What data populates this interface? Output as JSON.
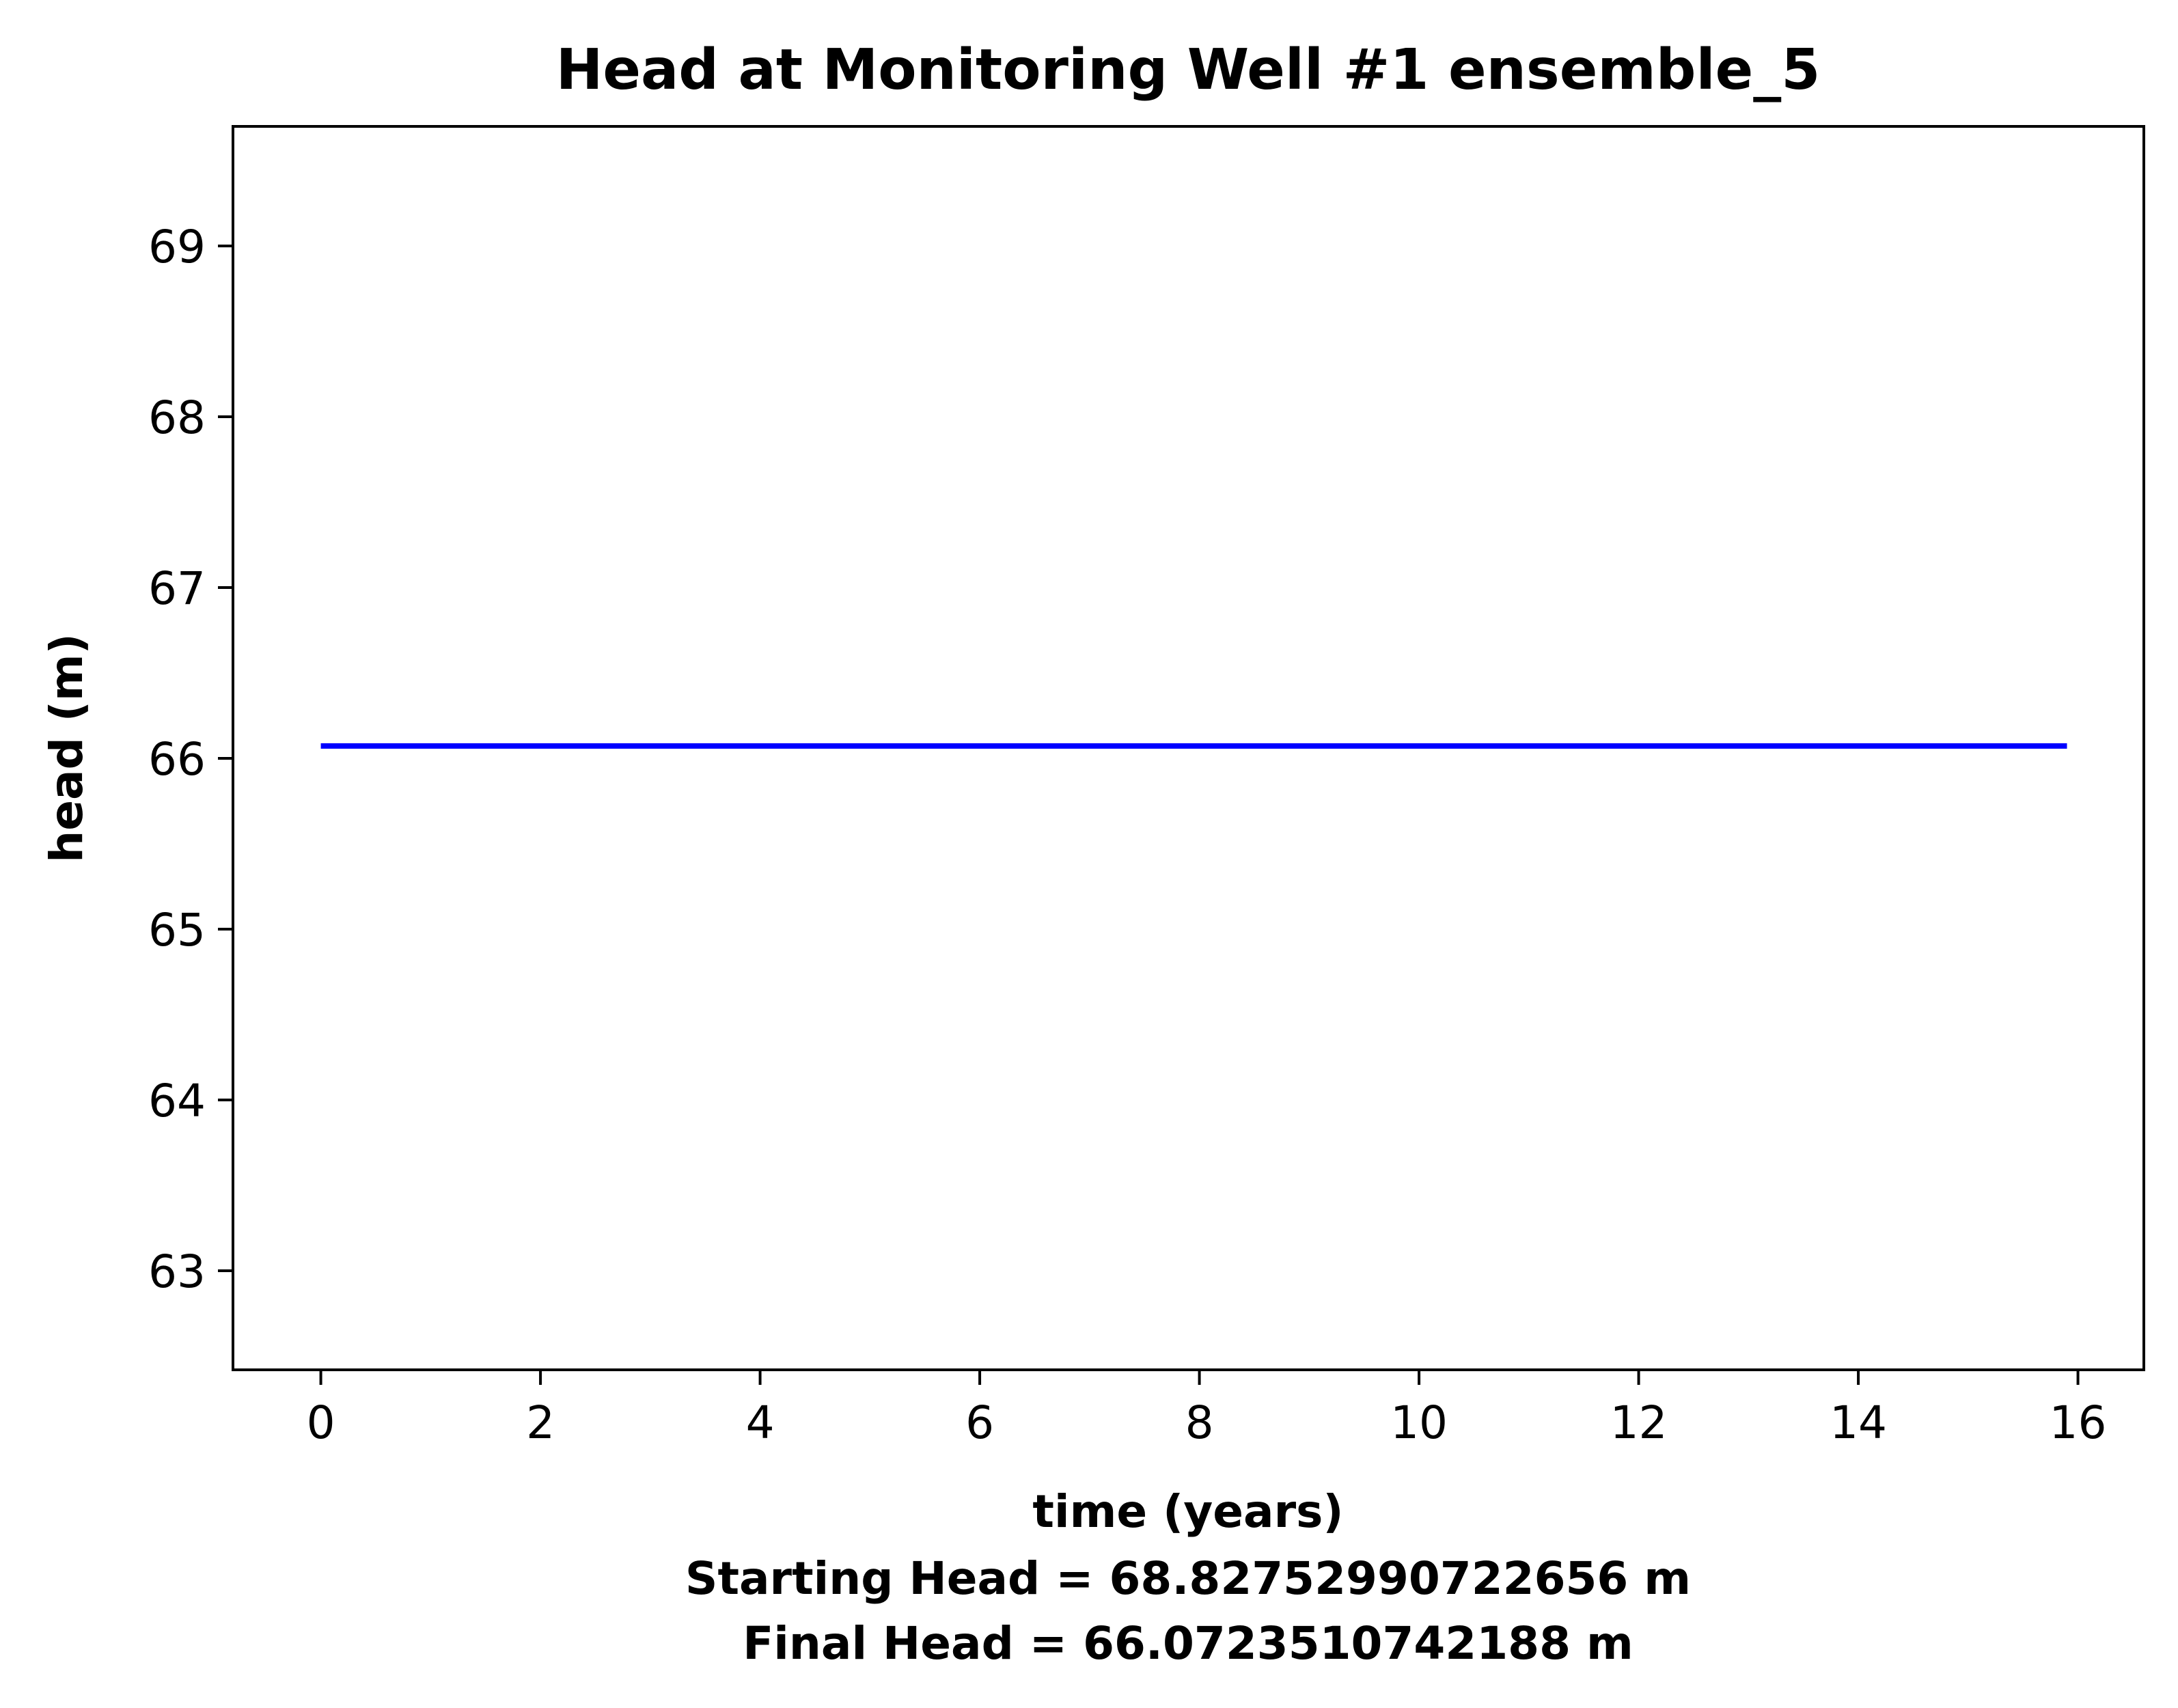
{
  "chart_data": {
    "type": "line",
    "title": "Head at Monitoring Well #1 ensemble_5",
    "xlabel": "time (years)",
    "ylabel": "head (m)",
    "xlim": [
      -0.8,
      16.6
    ],
    "ylim": [
      62.42,
      69.7
    ],
    "xticks": [
      0,
      2,
      4,
      6,
      8,
      10,
      12,
      14,
      16
    ],
    "yticks": [
      63,
      64,
      65,
      66,
      67,
      68,
      69
    ],
    "grid": false,
    "series": [
      {
        "color": "#0000ff",
        "x": [
          0,
          15.9
        ],
        "y": [
          66.0723510742188,
          66.0723510742188
        ]
      }
    ],
    "annotations": [
      "Starting Head = 68.82752990722656 m",
      "Final Head = 66.0723510742188 m"
    ]
  }
}
